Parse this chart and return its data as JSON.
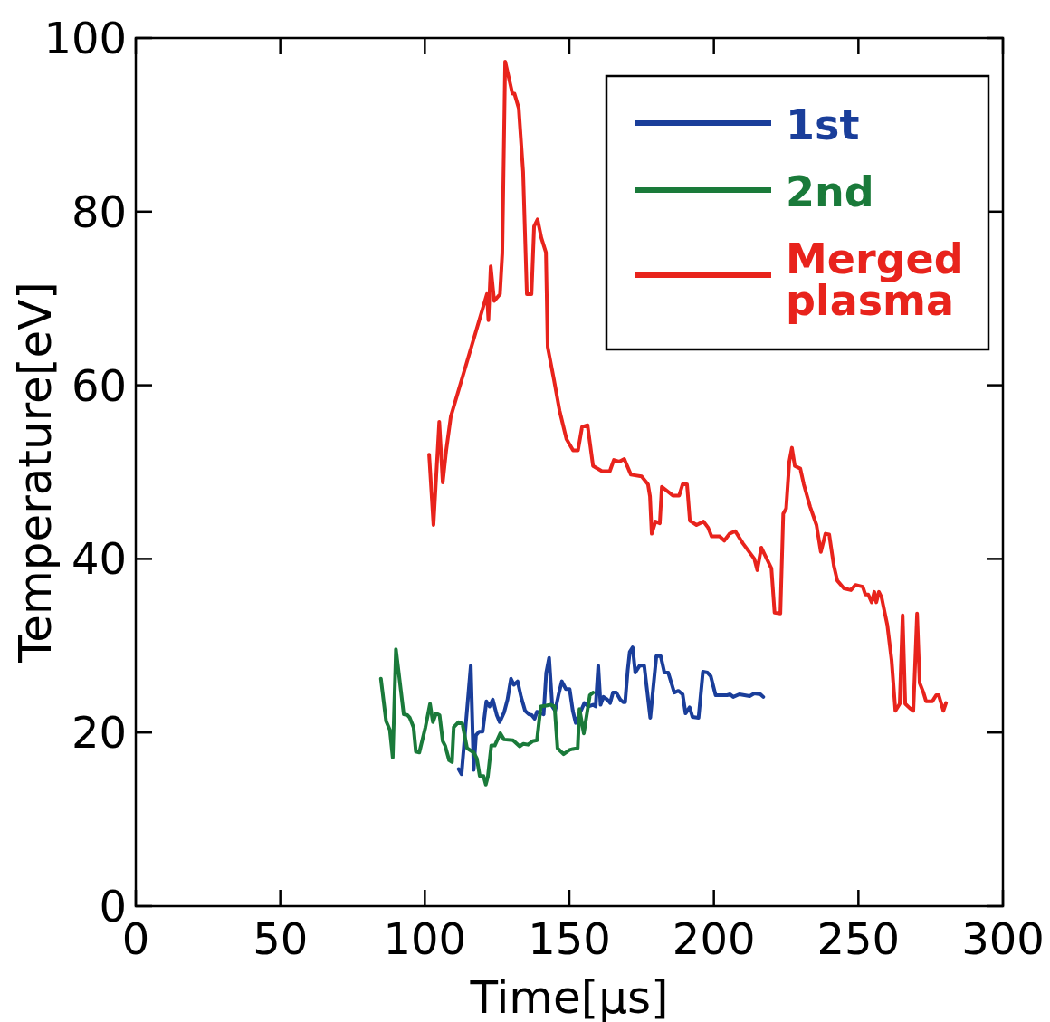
{
  "chart_data": {
    "type": "line",
    "xlabel": "Time[μs]",
    "ylabel": "Temperature[eV]",
    "xlim": [
      0,
      300
    ],
    "ylim": [
      0,
      100
    ],
    "xticks": [
      0,
      50,
      100,
      150,
      200,
      250,
      300
    ],
    "yticks": [
      0,
      20,
      40,
      60,
      80,
      100
    ],
    "grid": false,
    "legend": "top right",
    "line_style": "solid",
    "marker": "none",
    "series": [
      {
        "name": "1st",
        "color": "#1a3e9a",
        "x": [
          111.7,
          112.7,
          115.9,
          116.9,
          117.7,
          118.8,
          120,
          121.3,
          122.4,
          123.5,
          124.9,
          125.9,
          127.4,
          128.6,
          129.8,
          130.8,
          132.1,
          133.3,
          134.7,
          136,
          137,
          138,
          138.8,
          141.1,
          142,
          143,
          144.1,
          145.1,
          146.3,
          147.4,
          148.8,
          150.1,
          151.2,
          152.2,
          154,
          155.2,
          156.6,
          158.2,
          159.1,
          160,
          160.8,
          161.8,
          163.1,
          164.1,
          165.1,
          166.2,
          167.6,
          168.6,
          169.3,
          170.2,
          170.9,
          171.9,
          172.8,
          174.3,
          175.9,
          178,
          180.1,
          181.6,
          182.9,
          184.2,
          186.3,
          187.7,
          189.2,
          190.2,
          191.6,
          192.6,
          194.7,
          196.2,
          197.8,
          198.9,
          200.6,
          204.6,
          205.6,
          206.7,
          208.8,
          212.4,
          214,
          216.1,
          217.1
        ],
        "values": [
          15.8,
          15.2,
          27.7,
          15.7,
          19.7,
          20.1,
          20.1,
          23.6,
          23,
          23.8,
          22,
          21.2,
          22.3,
          23.8,
          26.2,
          25.5,
          25.9,
          24.1,
          22.5,
          22.1,
          22,
          21.6,
          22.4,
          22.1,
          26.9,
          28.6,
          23,
          22.5,
          24.4,
          25.9,
          25,
          25,
          22.5,
          21.1,
          22.5,
          23.4,
          23,
          23.2,
          23,
          27.7,
          23.2,
          24.1,
          23.8,
          23.4,
          24.6,
          24.6,
          23.8,
          23.5,
          23.5,
          27.2,
          29.3,
          29.8,
          26.9,
          27.7,
          27.7,
          21.7,
          28.8,
          28.8,
          26.9,
          26.9,
          24.6,
          24.8,
          24.4,
          22.2,
          22.9,
          21.8,
          21.7,
          27,
          26.9,
          26.5,
          24.3,
          24.3,
          24.4,
          24.1,
          24.4,
          24.2,
          24.5,
          24.4,
          24.1
        ]
      },
      {
        "name": "2nd",
        "color": "#1a7a3a",
        "x": [
          84.8,
          86.6,
          87.9,
          88.9,
          90,
          92.7,
          94,
          94.8,
          96.1,
          96.9,
          98.1,
          100.2,
          101.8,
          102.8,
          103.9,
          105.1,
          106.2,
          107,
          108.4,
          109.4,
          110,
          111.7,
          113,
          114.6,
          116.9,
          118,
          119,
          120.3,
          121.1,
          121.8,
          123,
          124.2,
          126.1,
          127.4,
          130.5,
          132.8,
          134.1,
          135.7,
          137.3,
          138.8,
          140.1,
          142,
          143.5,
          144.9,
          145.9,
          148,
          150.1,
          151.2,
          152.9,
          153.5,
          155,
          157.1,
          158.2
        ],
        "values": [
          26.2,
          21.3,
          20.3,
          17.1,
          29.6,
          22.1,
          22,
          21.7,
          20.6,
          17.8,
          17.7,
          20.6,
          23.3,
          21.2,
          22.2,
          22,
          19,
          18.5,
          16.8,
          16.6,
          20.6,
          21.2,
          21,
          18.2,
          17.7,
          17,
          15,
          15,
          14,
          14.9,
          18.5,
          18.5,
          19.9,
          19.2,
          19.1,
          18.4,
          18.7,
          18.6,
          19,
          19.1,
          23,
          23.1,
          23.2,
          23,
          18.2,
          17.5,
          18,
          18.1,
          18.2,
          22.7,
          19.9,
          24.3,
          24.6
        ]
      },
      {
        "name": "Merged plasma",
        "color": "#e8231c",
        "x": [
          101.5,
          103,
          105,
          106.2,
          107.4,
          109,
          121.5,
          122,
          122.8,
          124,
          126,
          126.8,
          127.8,
          130.3,
          131,
          132.5,
          134,
          135.3,
          136.9,
          137.8,
          139,
          140.3,
          141.9,
          142.5,
          144.7,
          146.6,
          149,
          151.3,
          153,
          154.4,
          156.3,
          158.2,
          161.3,
          164,
          165.4,
          167.2,
          169,
          171.3,
          175,
          177.2,
          177.9,
          178.5,
          179.8,
          181.3,
          182,
          185.8,
          188,
          189.2,
          190.7,
          191.7,
          194,
          196.4,
          198,
          199.2,
          202,
          203.6,
          205.4,
          207.4,
          210,
          214,
          215,
          216.4,
          218.3,
          219.9,
          221,
          223,
          224,
          225,
          226.1,
          227,
          228,
          229.9,
          231.1,
          233.3,
          235.5,
          237,
          238.6,
          239.9,
          241.5,
          242.7,
          245,
          247.4,
          249,
          251.5,
          252.4,
          253.4,
          254.6,
          255.5,
          256.2,
          257.1,
          258,
          260,
          261.5,
          262.8,
          264.3,
          265.3,
          266.2,
          267.8,
          269,
          270.3,
          271.2,
          272.5,
          273.4,
          275.6,
          276.9,
          277.8,
          279.4,
          280.3
        ],
        "values": [
          52,
          43.9,
          55.8,
          48.8,
          52.5,
          56.4,
          70.5,
          67.5,
          73.7,
          69.7,
          70.5,
          75.2,
          97.3,
          93.6,
          93.6,
          91.9,
          84.6,
          70.5,
          70.5,
          78.3,
          79.1,
          77,
          75.3,
          64.4,
          60.6,
          57.1,
          53.8,
          52.5,
          52.5,
          55.2,
          55.4,
          50.7,
          50.1,
          50.1,
          51.4,
          51.2,
          51.5,
          49.7,
          49.5,
          48.6,
          47.2,
          42.9,
          44.3,
          44.1,
          48.3,
          47.3,
          47.3,
          48.6,
          48.6,
          44.4,
          43.9,
          44.3,
          43.6,
          42.6,
          42.6,
          42.1,
          42.9,
          43.2,
          41.8,
          40,
          38.7,
          41.3,
          40,
          38.9,
          33.8,
          33.7,
          45.2,
          45.8,
          51.2,
          52.8,
          50.7,
          50.4,
          48.6,
          46,
          43.9,
          40.8,
          42.9,
          42.8,
          39.2,
          37.5,
          36.6,
          36.4,
          37,
          36.8,
          35.9,
          35.9,
          35,
          36.2,
          35,
          36.2,
          35.6,
          32.4,
          28.3,
          22.5,
          23.3,
          33.5,
          23.3,
          22.8,
          22.5,
          33.7,
          25.7,
          24.6,
          23.6,
          23.6,
          24.3,
          24.3,
          22.5,
          23.4
        ]
      }
    ]
  }
}
